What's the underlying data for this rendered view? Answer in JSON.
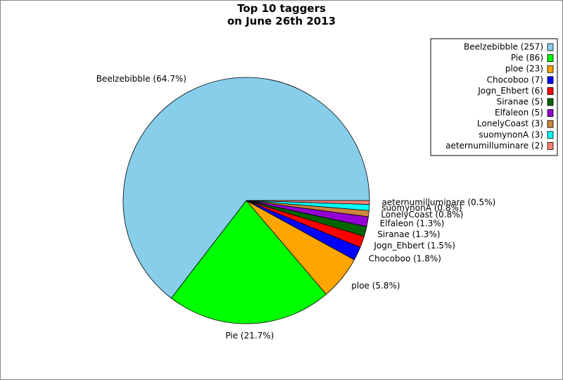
{
  "chart_data": {
    "type": "pie",
    "title": "Top 10 taggers\non June 26th 2013",
    "categories": [
      "Beelzebibble (257)",
      "Pie (86)",
      "ploe (23)",
      "Chocoboo (7)",
      "Jogn_Ehbert (6)",
      "Siranae (5)",
      "Elfaleon (5)",
      "LonelyCoast (3)",
      "suomynonA (3)",
      "aeternumilluminare (2)"
    ],
    "values": [
      64.7,
      21.7,
      5.8,
      1.8,
      1.5,
      1.3,
      1.3,
      0.8,
      0.8,
      0.5
    ],
    "value_labels": [
      "Beelzebibble (64.7%)",
      "Pie (21.7%)",
      "ploe (5.8%)",
      "Chocoboo (1.8%)",
      "Jogn_Ehbert (1.5%)",
      "Siranae (1.3%)",
      "Elfaleon (1.3%)",
      "LonelyCoast (0.8%)",
      "suomynonA (0.8%)",
      "aeternumilluminare (0.5%)"
    ],
    "colors": [
      "#87ceeb",
      "#00ff00",
      "#ffa500",
      "#0000ff",
      "#ff0000",
      "#006400",
      "#9400d3",
      "#cd853f",
      "#00ffff",
      "#fa8072"
    ],
    "legend": "upper right"
  }
}
